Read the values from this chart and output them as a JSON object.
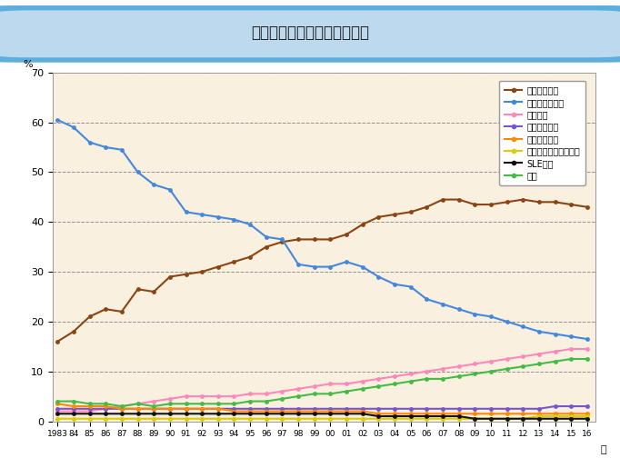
{
  "title": "導入患者の主要原疾患の推移",
  "ylabel": "%",
  "xlabel": "年",
  "ylim": [
    0,
    70
  ],
  "yticks": [
    0,
    10,
    20,
    30,
    40,
    50,
    60,
    70
  ],
  "years": [
    1983,
    1984,
    1985,
    1986,
    1987,
    1988,
    1989,
    1990,
    1991,
    1992,
    1993,
    1994,
    1995,
    1996,
    1997,
    1998,
    1999,
    2000,
    2001,
    2002,
    2003,
    2004,
    2005,
    2006,
    2007,
    2008,
    2009,
    2010,
    2011,
    2012,
    2013,
    2014,
    2015,
    2016
  ],
  "xtick_labels": [
    "1983",
    "84",
    "85",
    "86",
    "87",
    "88",
    "89",
    "90",
    "91",
    "92",
    "93",
    "94",
    "95",
    "96",
    "97",
    "98",
    "99",
    "00",
    "01",
    "02",
    "03",
    "04",
    "05",
    "06",
    "07",
    "08",
    "09",
    "10",
    "11",
    "12",
    "13",
    "14",
    "15",
    "16"
  ],
  "series": [
    {
      "name": "糖尿病性腎症",
      "color": "#8B4513",
      "values": [
        16.0,
        18.0,
        21.0,
        22.5,
        22.0,
        26.5,
        26.0,
        29.0,
        29.5,
        30.0,
        31.0,
        32.0,
        33.0,
        35.0,
        36.0,
        36.5,
        36.5,
        36.5,
        37.5,
        39.5,
        41.0,
        41.5,
        42.0,
        43.0,
        44.5,
        44.5,
        43.5,
        43.5,
        44.0,
        44.5,
        44.0,
        44.0,
        43.5,
        43.0
      ]
    },
    {
      "name": "慢性糸球体腎炎",
      "color": "#4488DD",
      "values": [
        60.5,
        59.0,
        56.0,
        55.0,
        54.5,
        50.0,
        47.5,
        46.5,
        42.0,
        41.5,
        41.0,
        40.5,
        39.5,
        37.0,
        36.5,
        31.5,
        31.0,
        31.0,
        32.0,
        31.0,
        29.0,
        27.5,
        27.0,
        24.5,
        23.5,
        22.5,
        21.5,
        21.0,
        20.0,
        19.0,
        18.0,
        17.5,
        17.0,
        16.5
      ]
    },
    {
      "name": "腎硬化症",
      "color": "#FF88BB",
      "values": [
        2.0,
        2.0,
        2.0,
        2.5,
        3.0,
        3.5,
        4.0,
        4.5,
        5.0,
        5.0,
        5.0,
        5.0,
        5.5,
        5.5,
        6.0,
        6.5,
        7.0,
        7.5,
        7.5,
        8.0,
        8.5,
        9.0,
        9.5,
        10.0,
        10.5,
        11.0,
        11.5,
        12.0,
        12.5,
        13.0,
        13.5,
        14.0,
        14.5,
        14.5
      ]
    },
    {
      "name": "多発性嚢胞腎",
      "color": "#7755CC",
      "values": [
        2.5,
        2.5,
        2.5,
        2.5,
        2.5,
        2.5,
        2.5,
        2.5,
        2.5,
        2.5,
        2.5,
        2.5,
        2.5,
        2.5,
        2.5,
        2.5,
        2.5,
        2.5,
        2.5,
        2.5,
        2.5,
        2.5,
        2.5,
        2.5,
        2.5,
        2.5,
        2.5,
        2.5,
        2.5,
        2.5,
        2.5,
        3.0,
        3.0,
        3.0
      ]
    },
    {
      "name": "慢性腎盂腎炎",
      "color": "#FF8800",
      "values": [
        3.5,
        3.0,
        3.0,
        3.0,
        2.5,
        2.5,
        2.5,
        2.5,
        2.5,
        2.5,
        2.5,
        2.0,
        2.0,
        2.0,
        2.0,
        2.0,
        2.0,
        2.0,
        2.0,
        2.0,
        1.5,
        1.5,
        1.5,
        1.5,
        1.5,
        1.5,
        1.5,
        1.5,
        1.5,
        1.5,
        1.5,
        1.5,
        1.5,
        1.5
      ]
    },
    {
      "name": "急速進行性糸球体腎炎",
      "color": "#DDCC00",
      "values": [
        0.5,
        0.5,
        0.5,
        0.5,
        0.5,
        0.5,
        0.5,
        0.5,
        0.5,
        0.5,
        0.5,
        0.5,
        0.5,
        0.5,
        0.5,
        0.5,
        0.5,
        0.5,
        0.5,
        0.5,
        0.5,
        0.5,
        0.5,
        0.5,
        0.5,
        0.5,
        0.5,
        0.5,
        0.5,
        0.5,
        1.0,
        1.0,
        1.0,
        1.0
      ]
    },
    {
      "name": "SLE腎炎",
      "color": "#111111",
      "values": [
        1.5,
        1.5,
        1.5,
        1.5,
        1.5,
        1.5,
        1.5,
        1.5,
        1.5,
        1.5,
        1.5,
        1.5,
        1.5,
        1.5,
        1.5,
        1.5,
        1.5,
        1.5,
        1.5,
        1.5,
        1.0,
        1.0,
        1.0,
        1.0,
        1.0,
        1.0,
        0.5,
        0.5,
        0.5,
        0.5,
        0.5,
        0.5,
        0.5,
        0.5
      ]
    },
    {
      "name": "不明",
      "color": "#44BB44",
      "values": [
        4.0,
        4.0,
        3.5,
        3.5,
        3.0,
        3.5,
        3.0,
        3.5,
        3.5,
        3.5,
        3.5,
        3.5,
        4.0,
        4.0,
        4.5,
        5.0,
        5.5,
        5.5,
        6.0,
        6.5,
        7.0,
        7.5,
        8.0,
        8.5,
        8.5,
        9.0,
        9.5,
        10.0,
        10.5,
        11.0,
        11.5,
        12.0,
        12.5,
        12.5
      ]
    }
  ],
  "plot_bg_color": "#FAF0E0",
  "outer_bg_color": "#FFFFFF",
  "title_bg_outer": "#5BAEDD",
  "title_bg_inner": "#BDD9EE",
  "title_color": "#1a1a1a"
}
